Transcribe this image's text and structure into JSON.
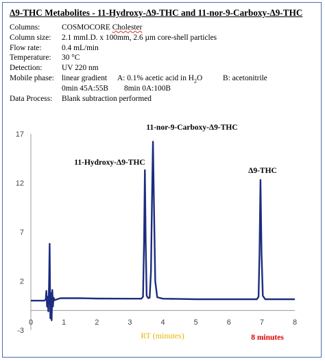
{
  "header": {
    "title": "Δ9-THC Metabolites - 11-Hydroxy-Δ9-THC and 11-nor-9-Carboxy-Δ9-THC"
  },
  "conditions": {
    "columns_label": "Columns:",
    "columns_value_a": "COSMOCORE ",
    "columns_value_b": "Cholester",
    "size_label": "Column size:",
    "size_value": "2.1 mmI.D. x 100mm, 2.6 µm core-shell particles",
    "flow_label": "Flow rate:",
    "flow_value": "0.4 mL/min",
    "temp_label": "Temperature:",
    "temp_value": "30 °C",
    "detect_label": "Detection:",
    "detect_value": "UV 220 nm",
    "mobile_label": "Mobile phase:",
    "mobile_value": "linear gradient",
    "mobile_a_pre": "A: 0.1% acetic acid in H",
    "mobile_a_sub": "2",
    "mobile_a_post": "O",
    "mobile_b": "B: acetonitrile",
    "gradient_start": "0min 45A:55B",
    "gradient_end": "8min 0A:100B",
    "process_label": "Data Process:",
    "process_value": "Blank subtraction performed"
  },
  "footer": {
    "runtime": "8 minutes"
  },
  "chart_data": {
    "type": "line",
    "title": "",
    "xlabel": "RT (minutes)",
    "ylabel": "",
    "xlim": [
      0,
      8
    ],
    "ylim": [
      -3,
      17
    ],
    "xticks": [
      0,
      1,
      2,
      3,
      4,
      5,
      6,
      7,
      8
    ],
    "yticks": [
      -3,
      2,
      7,
      12,
      17
    ],
    "grid": false,
    "line_color": "#1c2c80",
    "series": [
      {
        "values": [
          [
            0,
            0
          ],
          [
            0.4,
            0
          ],
          [
            0.45,
            0.1
          ],
          [
            0.47,
            1
          ],
          [
            0.49,
            -0.6
          ],
          [
            0.51,
            0.4
          ],
          [
            0.53,
            -1.1
          ],
          [
            0.55,
            1.6
          ],
          [
            0.57,
            5.8
          ],
          [
            0.59,
            -1.8
          ],
          [
            0.61,
            0.8
          ],
          [
            0.63,
            -2.0
          ],
          [
            0.65,
            1.1
          ],
          [
            0.67,
            -0.6
          ],
          [
            0.69,
            0.3
          ],
          [
            0.72,
            0.05
          ],
          [
            0.8,
            0.15
          ],
          [
            0.9,
            0.25
          ],
          [
            1.0,
            0.25
          ],
          [
            1.5,
            0.25
          ],
          [
            2.0,
            0.22
          ],
          [
            3.0,
            0.2
          ],
          [
            3.35,
            0.2
          ],
          [
            3.4,
            0.4
          ],
          [
            3.43,
            6
          ],
          [
            3.455,
            13.3
          ],
          [
            3.48,
            6
          ],
          [
            3.51,
            0.5
          ],
          [
            3.56,
            0.25
          ],
          [
            3.6,
            0.3
          ],
          [
            3.64,
            3
          ],
          [
            3.67,
            10
          ],
          [
            3.7,
            16.2
          ],
          [
            3.73,
            10
          ],
          [
            3.77,
            2
          ],
          [
            3.83,
            0.35
          ],
          [
            4.0,
            0.2
          ],
          [
            5.0,
            0.15
          ],
          [
            6.0,
            0.15
          ],
          [
            6.85,
            0.15
          ],
          [
            6.9,
            0.4
          ],
          [
            6.93,
            5
          ],
          [
            6.96,
            12.3
          ],
          [
            6.99,
            5
          ],
          [
            7.03,
            0.5
          ],
          [
            7.1,
            0.15
          ],
          [
            8.0,
            0.15
          ]
        ]
      }
    ],
    "annotations": [
      {
        "text": "11-Hydroxy-Δ9-THC",
        "x": 3.455
      },
      {
        "text": "11-nor-9-Carboxy-Δ9-THC",
        "x": 3.7
      },
      {
        "text": "Δ9-THC",
        "x": 6.96
      }
    ]
  }
}
